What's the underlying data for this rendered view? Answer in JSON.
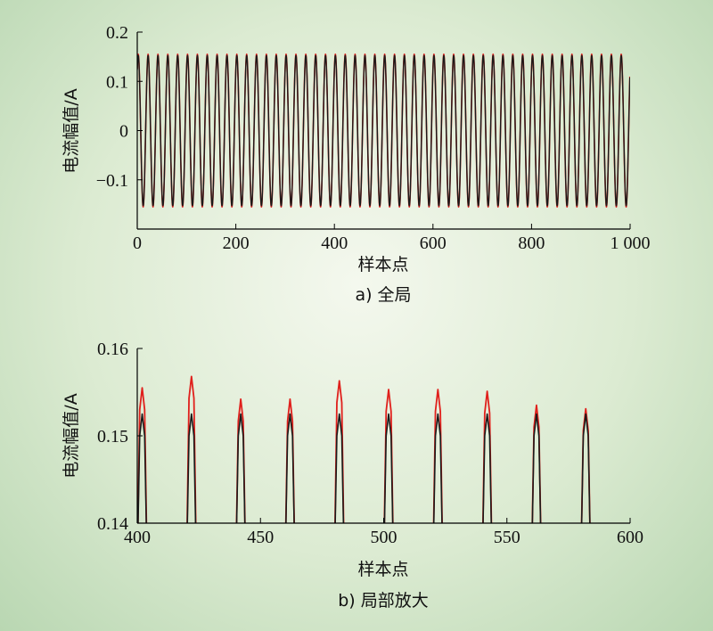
{
  "chart_data": [
    {
      "type": "line",
      "caption": "a) 全局",
      "xlabel": "样本点",
      "ylabel": "电流幅值/A",
      "xlim": [
        0,
        1000
      ],
      "ylim": [
        -0.2,
        0.2
      ],
      "xticks": [
        0,
        200,
        400,
        600,
        800,
        1000
      ],
      "xtick_labels": [
        "0",
        "200",
        "400",
        "600",
        "800",
        "1 000"
      ],
      "yticks": [
        -0.1,
        0,
        0.1,
        0.2
      ],
      "ytick_labels": [
        "−0.1",
        "0",
        "0.1",
        "0.2"
      ],
      "signal": {
        "period_samples": 20,
        "peak_index": 2,
        "samples": 1000
      },
      "series": [
        {
          "color": "#e0201c",
          "amplitude": 0.155
        },
        {
          "color": "#1a1a1a",
          "amplitude": 0.1525
        }
      ]
    },
    {
      "type": "line",
      "caption": "b) 局部放大",
      "xlabel": "样本点",
      "ylabel": "电流幅值/A",
      "xlim": [
        400,
        600
      ],
      "ylim": [
        0.14,
        0.16
      ],
      "xticks": [
        400,
        450,
        500,
        550,
        600
      ],
      "xtick_labels": [
        "400",
        "450",
        "500",
        "550",
        "600"
      ],
      "yticks": [
        0.14,
        0.15,
        0.16
      ],
      "ytick_labels": [
        "0.14",
        "0.15",
        "0.16"
      ],
      "peaks_x": [
        402,
        422,
        442,
        462,
        482,
        502,
        522,
        542,
        562,
        582
      ],
      "series": [
        {
          "color": "#e0201c",
          "peaks": [
            0.1555,
            0.1568,
            0.1542,
            0.1542,
            0.1563,
            0.1553,
            0.1553,
            0.1551,
            0.1535,
            0.1531
          ]
        },
        {
          "color": "#1a1a1a",
          "peaks": [
            0.1525,
            0.1525,
            0.1525,
            0.1525,
            0.1525,
            0.1525,
            0.1525,
            0.1525,
            0.1525,
            0.1525
          ]
        }
      ]
    }
  ]
}
